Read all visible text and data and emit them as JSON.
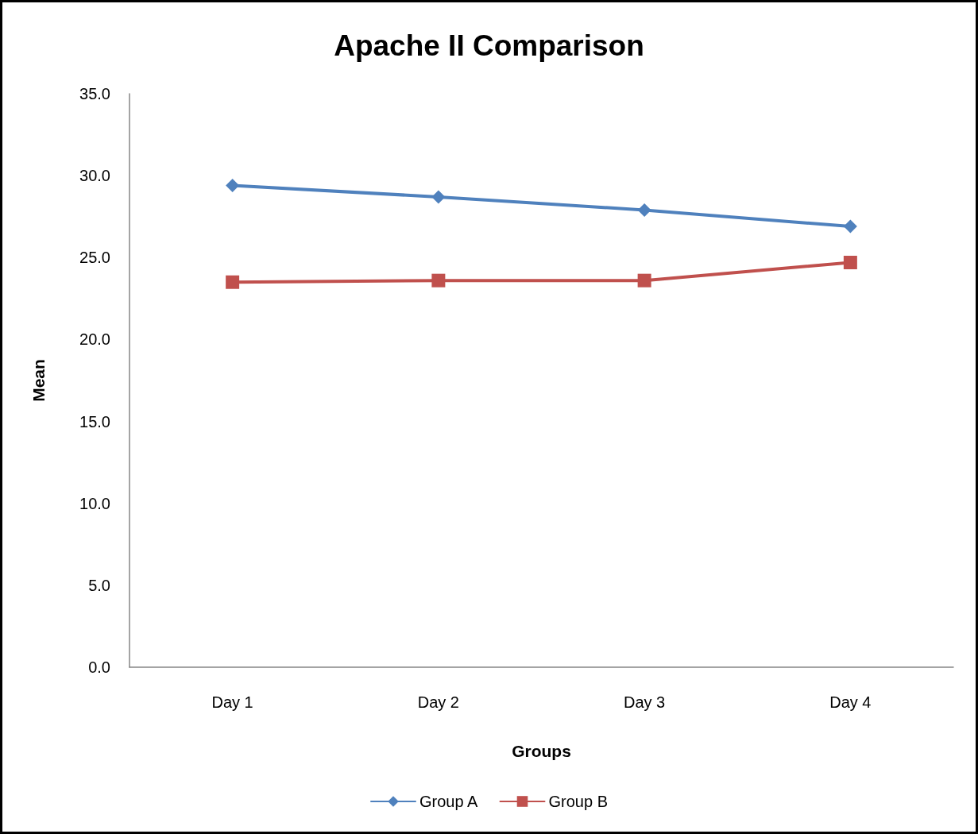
{
  "chart_data": {
    "type": "line",
    "title": "Apache II Comparison",
    "xlabel": "Groups",
    "ylabel": "Mean",
    "categories": [
      "Day 1",
      "Day 2",
      "Day 3",
      "Day 4"
    ],
    "series": [
      {
        "name": "Group A",
        "color": "#4f81bd",
        "marker": "diamond",
        "values": [
          29.4,
          28.7,
          27.9,
          26.9
        ]
      },
      {
        "name": "Group B",
        "color": "#c0504d",
        "marker": "square",
        "values": [
          23.5,
          23.6,
          23.6,
          24.7
        ]
      }
    ],
    "ylim": [
      0,
      35
    ],
    "yticks": [
      {
        "value": 0,
        "label": "0.0"
      },
      {
        "value": 5,
        "label": "5.0"
      },
      {
        "value": 10,
        "label": "10.0"
      },
      {
        "value": 15,
        "label": "15.0"
      },
      {
        "value": 20,
        "label": "20.0"
      },
      {
        "value": 25,
        "label": "25.0"
      },
      {
        "value": 30,
        "label": "30.0"
      },
      {
        "value": 35,
        "label": "35.0"
      }
    ],
    "legend": "bottom",
    "line_style": "solid"
  }
}
